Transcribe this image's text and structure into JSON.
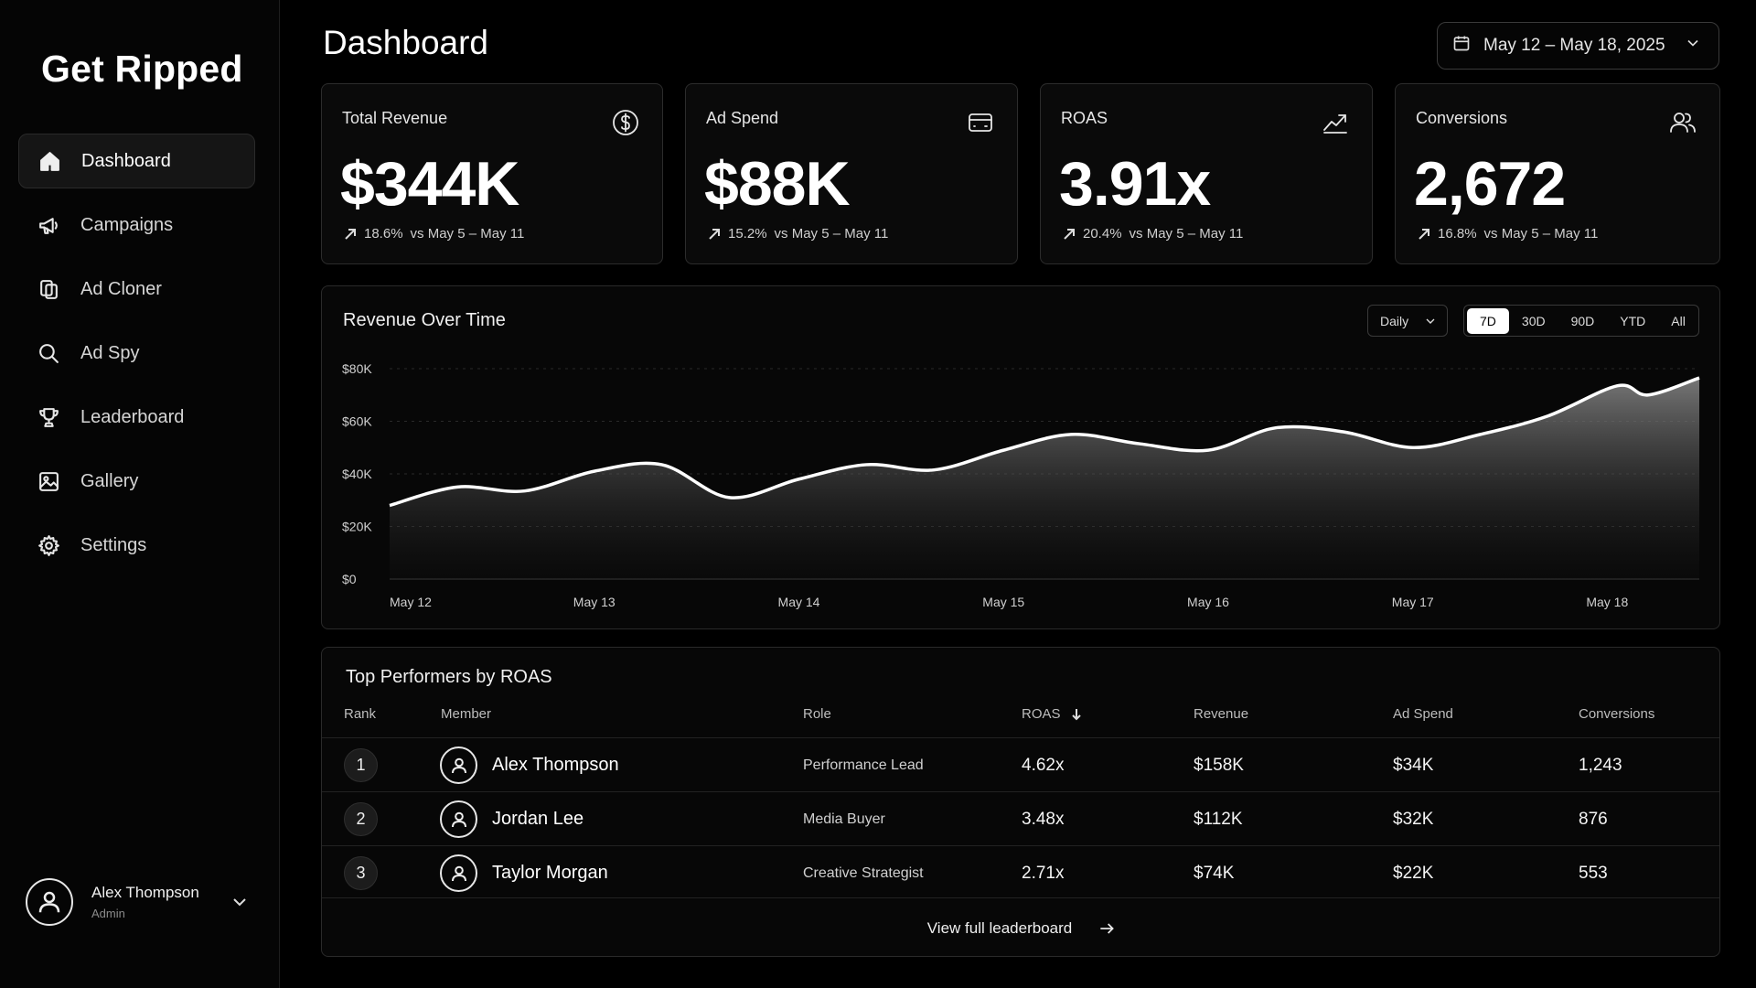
{
  "app": {
    "name": "Get Ripped"
  },
  "sidebar": {
    "items": [
      {
        "label": "Dashboard",
        "icon": "home-icon",
        "active": true
      },
      {
        "label": "Campaigns",
        "icon": "megaphone-icon",
        "active": false
      },
      {
        "label": "Ad Cloner",
        "icon": "copy-icon",
        "active": false
      },
      {
        "label": "Ad Spy",
        "icon": "search-icon",
        "active": false
      },
      {
        "label": "Leaderboard",
        "icon": "trophy-icon",
        "active": false
      },
      {
        "label": "Gallery",
        "icon": "image-icon",
        "active": false
      },
      {
        "label": "Settings",
        "icon": "gear-icon",
        "active": false
      }
    ],
    "user": {
      "name": "Alex Thompson",
      "role": "Admin"
    }
  },
  "header": {
    "title": "Dashboard",
    "date_range": "May 12 – May 18, 2025"
  },
  "kpis": [
    {
      "label": "Total Revenue",
      "value": "$344K",
      "delta": "18.6%",
      "compare": "vs May 5 – May 11",
      "icon": "dollar-icon"
    },
    {
      "label": "Ad Spend",
      "value": "$88K",
      "delta": "15.2%",
      "compare": "vs May 5 – May 11",
      "icon": "credit-card-icon"
    },
    {
      "label": "ROAS",
      "value": "3.91x",
      "delta": "20.4%",
      "compare": "vs May 5 – May 11",
      "icon": "trending-up-icon"
    },
    {
      "label": "Conversions",
      "value": "2,672",
      "delta": "16.8%",
      "compare": "vs May 5 – May 11",
      "icon": "users-icon"
    }
  ],
  "revenue_chart": {
    "title": "Revenue Over Time",
    "granularity": "Daily",
    "ranges": [
      {
        "label": "7D",
        "active": true
      },
      {
        "label": "30D",
        "active": false
      },
      {
        "label": "90D",
        "active": false
      },
      {
        "label": "YTD",
        "active": false
      },
      {
        "label": "All",
        "active": false
      }
    ]
  },
  "chart_data": {
    "type": "area",
    "title": "Revenue Over Time",
    "xlabel": "",
    "ylabel": "",
    "ylim": [
      0,
      80000
    ],
    "y_ticks": [
      "$0",
      "$20K",
      "$40K",
      "$60K",
      "$80K"
    ],
    "y_tick_values": [
      0,
      20000,
      40000,
      60000,
      80000
    ],
    "x_ticks": [
      "May 12",
      "May 13",
      "May 14",
      "May 15",
      "May 16",
      "May 17",
      "May 18"
    ],
    "x_range": [
      0,
      6.4
    ],
    "x_tick_positions": [
      0.05,
      1.0,
      2.0,
      3.0,
      4.0,
      5.0,
      5.95
    ],
    "grid": true,
    "series": [
      {
        "x": [
          0,
          0.33,
          0.66,
          1.0,
          1.33,
          1.66,
          2.0,
          2.33,
          2.66,
          3.0,
          3.33,
          3.66,
          4.0,
          4.33,
          4.66,
          5.0,
          5.33,
          5.66,
          6.0,
          6.15,
          6.4
        ],
        "values": [
          28000,
          35000,
          33500,
          41000,
          43500,
          31000,
          38000,
          43500,
          41500,
          49000,
          55000,
          51500,
          49000,
          57500,
          56000,
          50000,
          55000,
          62000,
          73500,
          70000,
          76500
        ]
      }
    ]
  },
  "table": {
    "title": "Top Performers by ROAS",
    "columns": [
      "Rank",
      "Member",
      "Role",
      "ROAS",
      "Revenue",
      "Ad Spend",
      "Conversions"
    ],
    "rows": [
      {
        "rank": "1",
        "member": "Alex Thompson",
        "role": "Performance Lead",
        "roas": "4.62x",
        "revenue": "$158K",
        "spend": "$34K",
        "conversions": "1,243"
      },
      {
        "rank": "2",
        "member": "Jordan Lee",
        "role": "Media Buyer",
        "roas": "3.48x",
        "revenue": "$112K",
        "spend": "$32K",
        "conversions": "876"
      },
      {
        "rank": "3",
        "member": "Taylor Morgan",
        "role": "Creative Strategist",
        "roas": "2.71x",
        "revenue": "$74K",
        "spend": "$22K",
        "conversions": "553"
      }
    ],
    "footer_link": "View full leaderboard"
  },
  "colors": {
    "background": "#000000",
    "card": "#0a0a0a",
    "border": "#2c2c2c",
    "accent": "#ffffff"
  }
}
